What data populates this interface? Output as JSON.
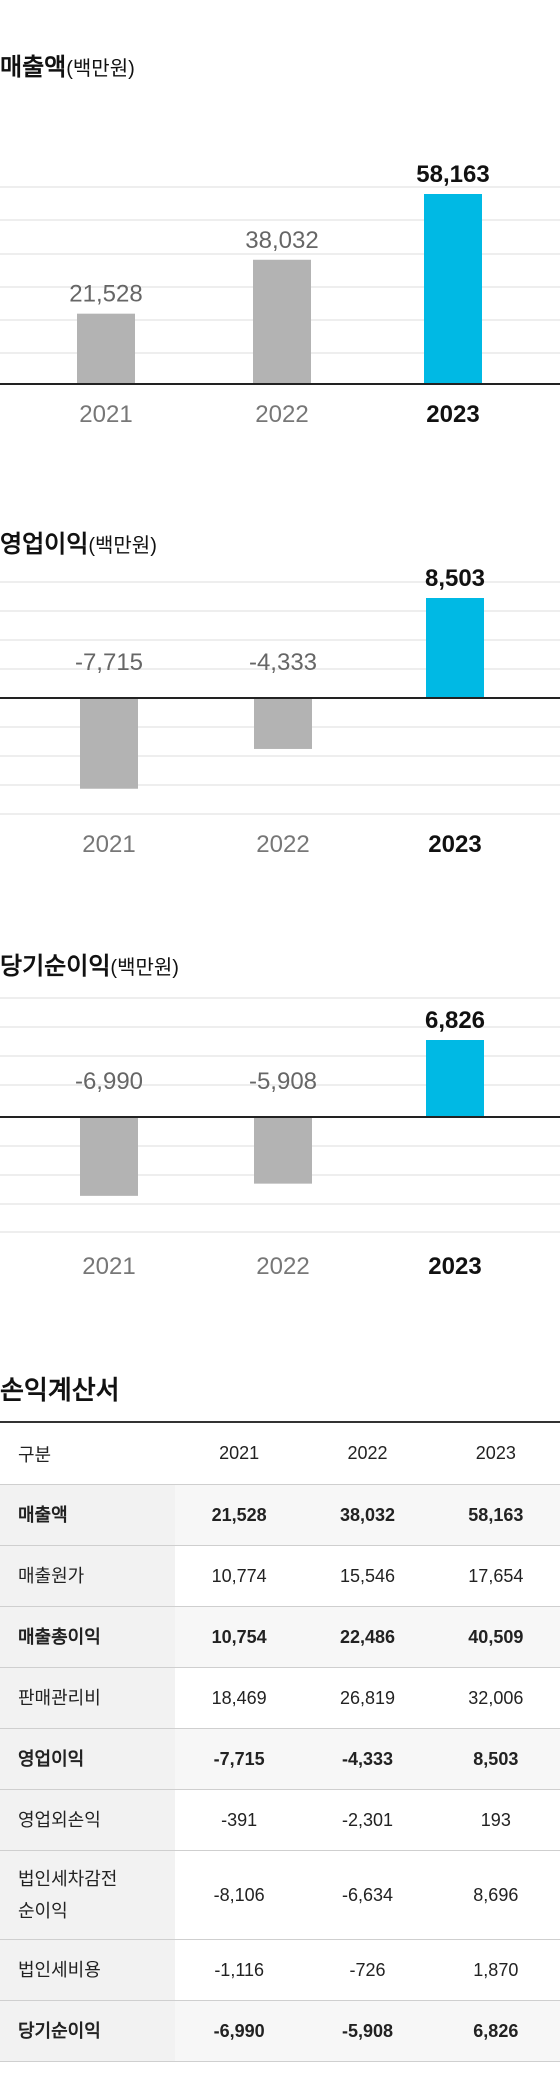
{
  "charts_text": {
    "revenue_title": "매출액",
    "op_title": "영업이익",
    "net_title": "당기순이익",
    "unit": "(백만원)"
  },
  "colors": {
    "highlight": "#00b9e4",
    "muted": "#b3b3b3",
    "grid": "#dcdcdc",
    "axis": "#222222"
  },
  "chart_data": [
    {
      "type": "bar",
      "title": "매출액(백만원)",
      "categories": [
        "2021",
        "2022",
        "2023"
      ],
      "values": [
        21528,
        38032,
        58163
      ],
      "value_labels": [
        "21,528",
        "38,032",
        "58,163"
      ],
      "highlight_index": 2,
      "ylim": [
        0,
        58163
      ],
      "grid": true
    },
    {
      "type": "bar",
      "title": "영업이익(백만원)",
      "categories": [
        "2021",
        "2022",
        "2023"
      ],
      "values": [
        -7715,
        -4333,
        8503
      ],
      "value_labels": [
        "-7,715",
        "-4,333",
        "8,503"
      ],
      "highlight_index": 2,
      "grid": true
    },
    {
      "type": "bar",
      "title": "당기순이익(백만원)",
      "categories": [
        "2021",
        "2022",
        "2023"
      ],
      "values": [
        -6990,
        -5908,
        6826
      ],
      "value_labels": [
        "-6,990",
        "-5,908",
        "6,826"
      ],
      "highlight_index": 2,
      "grid": true
    }
  ],
  "table": {
    "title": "손익계산서",
    "headers": [
      "구분",
      "2021",
      "2022",
      "2023"
    ],
    "rows": [
      {
        "label": "매출액",
        "values": [
          "21,528",
          "38,032",
          "58,163"
        ]
      },
      {
        "label": "매출원가",
        "values": [
          "10,774",
          "15,546",
          "17,654"
        ]
      },
      {
        "label": "매출총이익",
        "values": [
          "10,754",
          "22,486",
          "40,509"
        ]
      },
      {
        "label": "판매관리비",
        "values": [
          "18,469",
          "26,819",
          "32,006"
        ]
      },
      {
        "label": "영업이익",
        "values": [
          "-7,715",
          "-4,333",
          "8,503"
        ]
      },
      {
        "label": "영업외손익",
        "values": [
          "-391",
          "-2,301",
          "193"
        ]
      },
      {
        "label": "법인세차감전\n순이익",
        "values": [
          "-8,106",
          "-6,634",
          "8,696"
        ]
      },
      {
        "label": "법인세비용",
        "values": [
          "-1,116",
          "-726",
          "1,870"
        ]
      },
      {
        "label": "당기순이익",
        "values": [
          "-6,990",
          "-5,908",
          "6,826"
        ]
      }
    ]
  }
}
